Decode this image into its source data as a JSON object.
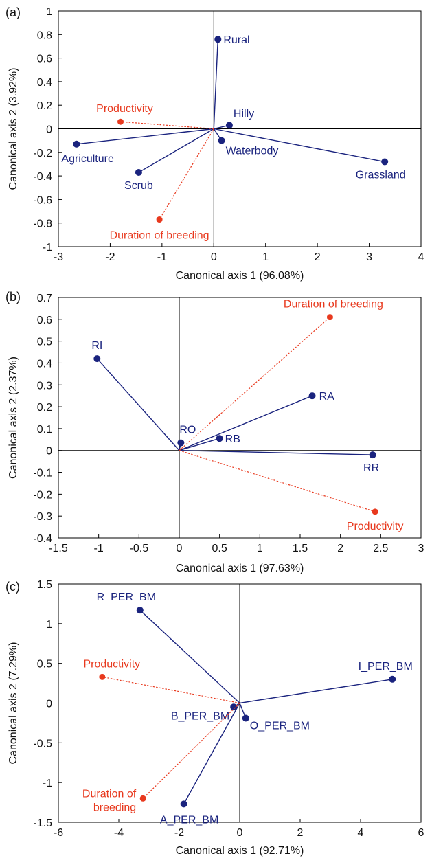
{
  "colors": {
    "species": "#1a237e",
    "env": "#e8391e",
    "text": "#111111"
  },
  "chart_data": [
    {
      "type": "scatter",
      "panel_label": "(a)",
      "xlabel": "Canonical axis 1 (96.08%)",
      "ylabel": "Canonical axis 2 (3.92%)",
      "xlim": [
        -3,
        4
      ],
      "ylim": [
        -1,
        1
      ],
      "xticks": [
        -3,
        -2,
        -1,
        0,
        1,
        2,
        3,
        4
      ],
      "yticks": [
        -1,
        -0.8,
        -0.6,
        -0.4,
        -0.2,
        0,
        0.2,
        0.4,
        0.6,
        0.8,
        1
      ],
      "xtick_labels": [
        "-3",
        "-2",
        "-1",
        "0",
        "1",
        "2",
        "3",
        "4"
      ],
      "ytick_labels": [
        "-1",
        "-0.8",
        "-0.6",
        "-0.4",
        "-0.2",
        "0",
        "0.2",
        "0.4",
        "0.6",
        "0.8",
        "1"
      ],
      "grid": false,
      "series": [
        {
          "group": "habitat",
          "color": "#1a237e",
          "style": "solid",
          "points": [
            {
              "label": "Rural",
              "x": 0.08,
              "y": 0.76,
              "anchor": "start",
              "dx": 8,
              "dy": 6
            },
            {
              "label": "Hilly",
              "x": 0.3,
              "y": 0.03,
              "anchor": "start",
              "dx": 6,
              "dy": -12
            },
            {
              "label": "Waterbody",
              "x": 0.15,
              "y": -0.1,
              "anchor": "start",
              "dx": 6,
              "dy": 20
            },
            {
              "label": "Grassland",
              "x": 3.3,
              "y": -0.28,
              "anchor": "middle",
              "dx": -6,
              "dy": 24
            },
            {
              "label": "Agriculture",
              "x": -2.65,
              "y": -0.13,
              "anchor": "start",
              "dx": -22,
              "dy": 26
            },
            {
              "label": "Scrub",
              "x": -1.45,
              "y": -0.37,
              "anchor": "middle",
              "dx": 0,
              "dy": 24
            }
          ]
        },
        {
          "group": "environment",
          "color": "#e8391e",
          "style": "dashed",
          "points": [
            {
              "label": "Productivity",
              "x": -1.8,
              "y": 0.06,
              "anchor": "middle",
              "dx": 6,
              "dy": -14
            },
            {
              "label": "Duration of breeding",
              "x": -1.05,
              "y": -0.77,
              "anchor": "middle",
              "dx": 0,
              "dy": 28
            }
          ]
        }
      ]
    },
    {
      "type": "scatter",
      "panel_label": "(b)",
      "xlabel": "Canonical axis 1 (97.63%)",
      "ylabel": "Canonical axis 2 (2.37%)",
      "xlim": [
        -1.5,
        3
      ],
      "ylim": [
        -0.4,
        0.7
      ],
      "xticks": [
        -1.5,
        -1,
        -0.5,
        0,
        0.5,
        1,
        1.5,
        2,
        2.5,
        3
      ],
      "yticks": [
        -0.4,
        -0.3,
        -0.2,
        -0.1,
        0,
        0.1,
        0.2,
        0.3,
        0.4,
        0.5,
        0.6,
        0.7
      ],
      "xtick_labels": [
        "-1.5",
        "-1",
        "-0.5",
        "0",
        "0.5",
        "1",
        "1.5",
        "2",
        "2.5",
        "3"
      ],
      "ytick_labels": [
        "-0.4",
        "-0.3",
        "-0.2",
        "-0.1",
        "0",
        "0.1",
        "0.2",
        "0.3",
        "0.4",
        "0.5",
        "0.6",
        "0.7"
      ],
      "grid": false,
      "series": [
        {
          "group": "guild",
          "color": "#1a237e",
          "style": "solid",
          "points": [
            {
              "label": "RI",
              "x": -1.02,
              "y": 0.42,
              "anchor": "middle",
              "dx": 0,
              "dy": -14
            },
            {
              "label": "RO",
              "x": 0.02,
              "y": 0.035,
              "anchor": "middle",
              "dx": 10,
              "dy": -14
            },
            {
              "label": "RB",
              "x": 0.5,
              "y": 0.055,
              "anchor": "start",
              "dx": 8,
              "dy": 6
            },
            {
              "label": "RA",
              "x": 1.65,
              "y": 0.25,
              "anchor": "start",
              "dx": 10,
              "dy": 6
            },
            {
              "label": "RR",
              "x": 2.4,
              "y": -0.02,
              "anchor": "middle",
              "dx": -2,
              "dy": 24
            }
          ]
        },
        {
          "group": "environment",
          "color": "#e8391e",
          "style": "dashed",
          "points": [
            {
              "label": "Duration of breeding",
              "x": 1.87,
              "y": 0.61,
              "anchor": "middle",
              "dx": 5,
              "dy": -14
            },
            {
              "label": "Productivity",
              "x": 2.43,
              "y": -0.28,
              "anchor": "middle",
              "dx": 0,
              "dy": 26
            }
          ]
        }
      ]
    },
    {
      "type": "scatter",
      "panel_label": "(c)",
      "xlabel": "Canonical axis 1 (92.71%)",
      "ylabel": "Canonical axis 2 (7.29%)",
      "xlim": [
        -6,
        6
      ],
      "ylim": [
        -1.5,
        1.5
      ],
      "xticks": [
        -6,
        -4,
        -2,
        0,
        2,
        4,
        6
      ],
      "yticks": [
        -1.5,
        -1,
        -0.5,
        0,
        0.5,
        1,
        1.5
      ],
      "xtick_labels": [
        "-6",
        "-4",
        "-2",
        "0",
        "2",
        "4",
        "6"
      ],
      "ytick_labels": [
        "-1.5",
        "-1",
        "-0.5",
        "0",
        "0.5",
        "1",
        "1.5"
      ],
      "grid": false,
      "series": [
        {
          "group": "feeding",
          "color": "#1a237e",
          "style": "solid",
          "points": [
            {
              "label": "R_PER_BM",
              "x": -3.3,
              "y": 1.17,
              "anchor": "middle",
              "dx": -20,
              "dy": -14
            },
            {
              "label": "I_PER_BM",
              "x": 5.05,
              "y": 0.3,
              "anchor": "middle",
              "dx": -10,
              "dy": -14
            },
            {
              "label": "B_PER_BM",
              "x": -0.2,
              "y": -0.05,
              "anchor": "end",
              "dx": -6,
              "dy": 18
            },
            {
              "label": "O_PER_BM",
              "x": 0.2,
              "y": -0.19,
              "anchor": "start",
              "dx": 6,
              "dy": 16
            },
            {
              "label": "A_PER_BM",
              "x": -1.85,
              "y": -1.27,
              "anchor": "middle",
              "dx": 8,
              "dy": 28
            }
          ]
        },
        {
          "group": "environment",
          "color": "#e8391e",
          "style": "dashed",
          "points": [
            {
              "label": "Productivity",
              "x": -4.55,
              "y": 0.33,
              "anchor": "middle",
              "dx": 14,
              "dy": -14
            },
            {
              "label": "Duration of breeding",
              "x": -3.2,
              "y": -1.2,
              "anchor": "end",
              "dx": -10,
              "dy": -2,
              "multiline": [
                "Duration of",
                "breeding"
              ]
            }
          ]
        }
      ]
    }
  ]
}
